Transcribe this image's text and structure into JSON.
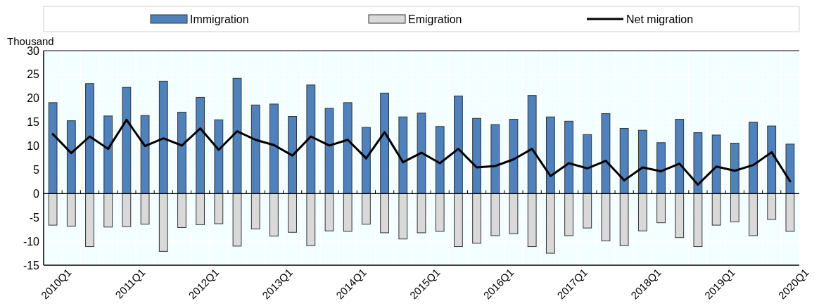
{
  "chart_data": {
    "type": "bar",
    "ylabel": "Thousand",
    "stacked": true,
    "grid": true,
    "legend": "top",
    "categories": [
      "2010Q1",
      null,
      null,
      null,
      "2011Q1",
      null,
      null,
      null,
      "2012Q1",
      null,
      null,
      null,
      "2013Q1",
      null,
      null,
      null,
      "2014Q1",
      null,
      null,
      null,
      "2015Q1",
      null,
      null,
      null,
      "2016Q1",
      null,
      null,
      null,
      "2017Q1",
      null,
      null,
      null,
      "2018Q1",
      null,
      null,
      null,
      "2019Q1",
      null,
      null,
      null,
      "2020Q1"
    ],
    "ylim": [
      -15,
      30
    ],
    "yticks": [
      -15,
      -10,
      -5,
      0,
      5,
      10,
      15,
      20,
      25,
      30
    ],
    "series": [
      {
        "name": "Immigration",
        "color": "#4f81bd",
        "values": [
          19.1,
          15.3,
          23.1,
          16.3,
          22.3,
          16.4,
          23.6,
          17.1,
          20.2,
          15.5,
          24.2,
          18.6,
          18.8,
          16.2,
          22.8,
          17.9,
          19.1,
          13.9,
          21.1,
          16.1,
          16.9,
          14.1,
          20.5,
          15.8,
          14.5,
          15.6,
          20.6,
          16.1,
          15.2,
          12.4,
          16.8,
          13.7,
          13.3,
          10.7,
          15.6,
          12.8,
          12.3,
          10.6,
          15.0,
          14.2,
          10.4
        ]
      },
      {
        "name": "Emigration",
        "color": "#d9d9d9",
        "values": [
          -6.6,
          -6.8,
          -11.1,
          -7.0,
          -6.9,
          -6.4,
          -12.1,
          -7.1,
          -6.5,
          -6.3,
          -11.0,
          -7.4,
          -8.9,
          -8.1,
          -10.9,
          -7.8,
          -7.9,
          -6.4,
          -8.2,
          -9.5,
          -8.2,
          -7.9,
          -11.1,
          -10.4,
          -8.8,
          -8.4,
          -11.1,
          -12.5,
          -8.8,
          -7.2,
          -9.9,
          -10.9,
          -7.8,
          -6.1,
          -9.2,
          -11.1,
          -6.6,
          -5.9,
          -8.8,
          -5.4,
          -7.9
        ]
      },
      {
        "name": "Net migration",
        "type": "line",
        "color": "#000000",
        "values": [
          12.5,
          8.5,
          12.0,
          9.4,
          15.5,
          10.0,
          11.6,
          10.1,
          13.7,
          9.2,
          13.1,
          11.3,
          10.2,
          8.0,
          12.0,
          10.1,
          11.3,
          7.4,
          12.9,
          6.6,
          8.6,
          6.4,
          9.4,
          5.5,
          5.8,
          7.2,
          9.4,
          3.7,
          6.4,
          5.3,
          6.9,
          2.8,
          5.5,
          4.7,
          6.3,
          1.9,
          5.7,
          4.8,
          6.0,
          8.7,
          2.6
        ]
      }
    ]
  }
}
